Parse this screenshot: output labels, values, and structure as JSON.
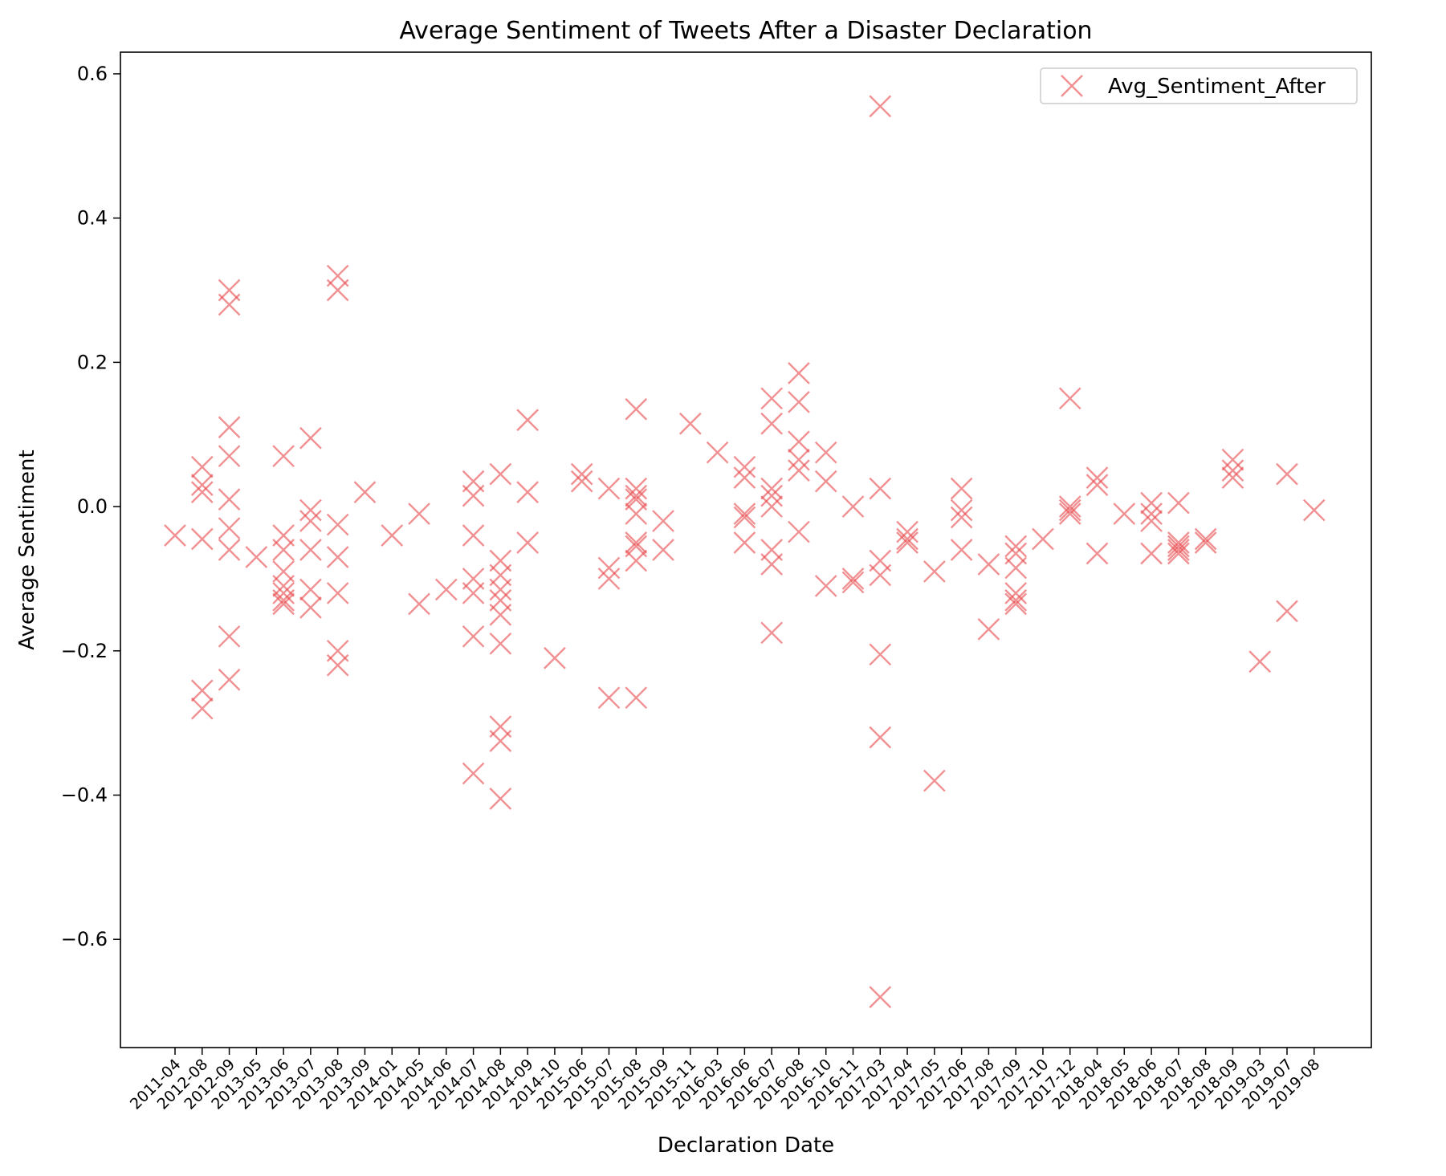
{
  "chart_data": {
    "type": "scatter",
    "title": "Average Sentiment of Tweets After a Disaster Declaration",
    "xlabel": "Declaration Date",
    "ylabel": "Average Sentiment",
    "ylim": [
      -0.75,
      0.63
    ],
    "yticks": [
      "0.6",
      "0.4",
      "0.2",
      "0.0",
      "−0.2",
      "−0.4",
      "−0.6"
    ],
    "ytick_values": [
      0.6,
      0.4,
      0.2,
      0.0,
      -0.2,
      -0.4,
      -0.6
    ],
    "grid": false,
    "legend_position": "top-right",
    "categories": [
      "2011-04",
      "2012-08",
      "2012-09",
      "2013-05",
      "2013-06",
      "2013-07",
      "2013-08",
      "2013-09",
      "2014-01",
      "2014-05",
      "2014-06",
      "2014-07",
      "2014-08",
      "2014-09",
      "2014-10",
      "2015-06",
      "2015-07",
      "2015-08",
      "2015-09",
      "2015-11",
      "2016-03",
      "2016-06",
      "2016-07",
      "2016-08",
      "2016-10",
      "2016-11",
      "2017-03",
      "2017-04",
      "2017-05",
      "2017-06",
      "2017-08",
      "2017-09",
      "2017-10",
      "2017-12",
      "2018-04",
      "2018-05",
      "2018-06",
      "2018-07",
      "2018-08",
      "2018-09",
      "2019-03",
      "2019-07",
      "2019-08"
    ],
    "series": [
      {
        "name": "Avg_Sentiment_After",
        "color": "#e8474a",
        "marker": "x",
        "points": [
          [
            "2011-04",
            -0.04
          ],
          [
            "2012-08",
            0.055
          ],
          [
            "2012-08",
            0.03
          ],
          [
            "2012-08",
            0.02
          ],
          [
            "2012-08",
            -0.045
          ],
          [
            "2012-08",
            -0.255
          ],
          [
            "2012-08",
            -0.28
          ],
          [
            "2012-09",
            0.3
          ],
          [
            "2012-09",
            0.28
          ],
          [
            "2012-09",
            0.11
          ],
          [
            "2012-09",
            0.07
          ],
          [
            "2012-09",
            0.01
          ],
          [
            "2012-09",
            -0.03
          ],
          [
            "2012-09",
            -0.06
          ],
          [
            "2012-09",
            -0.18
          ],
          [
            "2012-09",
            -0.24
          ],
          [
            "2013-05",
            -0.07
          ],
          [
            "2013-06",
            0.07
          ],
          [
            "2013-06",
            -0.04
          ],
          [
            "2013-06",
            -0.06
          ],
          [
            "2013-06",
            -0.09
          ],
          [
            "2013-06",
            -0.11
          ],
          [
            "2013-06",
            -0.12
          ],
          [
            "2013-06",
            -0.13
          ],
          [
            "2013-06",
            -0.135
          ],
          [
            "2013-07",
            0.095
          ],
          [
            "2013-07",
            -0.005
          ],
          [
            "2013-07",
            -0.02
          ],
          [
            "2013-07",
            -0.06
          ],
          [
            "2013-07",
            -0.115
          ],
          [
            "2013-07",
            -0.14
          ],
          [
            "2013-08",
            0.32
          ],
          [
            "2013-08",
            0.3
          ],
          [
            "2013-08",
            -0.025
          ],
          [
            "2013-08",
            -0.07
          ],
          [
            "2013-08",
            -0.12
          ],
          [
            "2013-08",
            -0.2
          ],
          [
            "2013-08",
            -0.22
          ],
          [
            "2013-09",
            0.02
          ],
          [
            "2014-01",
            -0.04
          ],
          [
            "2014-05",
            -0.01
          ],
          [
            "2014-05",
            -0.135
          ],
          [
            "2014-06",
            -0.115
          ],
          [
            "2014-07",
            0.035
          ],
          [
            "2014-07",
            0.015
          ],
          [
            "2014-07",
            -0.04
          ],
          [
            "2014-07",
            -0.1
          ],
          [
            "2014-07",
            -0.12
          ],
          [
            "2014-07",
            -0.18
          ],
          [
            "2014-07",
            -0.37
          ],
          [
            "2014-08",
            0.045
          ],
          [
            "2014-08",
            -0.075
          ],
          [
            "2014-08",
            -0.095
          ],
          [
            "2014-08",
            -0.115
          ],
          [
            "2014-08",
            -0.13
          ],
          [
            "2014-08",
            -0.15
          ],
          [
            "2014-08",
            -0.19
          ],
          [
            "2014-08",
            -0.305
          ],
          [
            "2014-08",
            -0.325
          ],
          [
            "2014-08",
            -0.405
          ],
          [
            "2014-09",
            0.12
          ],
          [
            "2014-09",
            0.02
          ],
          [
            "2014-09",
            -0.05
          ],
          [
            "2014-10",
            -0.21
          ],
          [
            "2015-06",
            0.045
          ],
          [
            "2015-06",
            0.035
          ],
          [
            "2015-07",
            0.025
          ],
          [
            "2015-07",
            -0.085
          ],
          [
            "2015-07",
            -0.1
          ],
          [
            "2015-07",
            -0.265
          ],
          [
            "2015-08",
            0.135
          ],
          [
            "2015-08",
            0.025
          ],
          [
            "2015-08",
            0.015
          ],
          [
            "2015-08",
            0.01
          ],
          [
            "2015-08",
            -0.01
          ],
          [
            "2015-08",
            -0.05
          ],
          [
            "2015-08",
            -0.055
          ],
          [
            "2015-08",
            -0.075
          ],
          [
            "2015-08",
            -0.265
          ],
          [
            "2015-09",
            -0.02
          ],
          [
            "2015-09",
            -0.06
          ],
          [
            "2015-11",
            0.115
          ],
          [
            "2016-03",
            0.075
          ],
          [
            "2016-06",
            0.055
          ],
          [
            "2016-06",
            0.04
          ],
          [
            "2016-06",
            -0.01
          ],
          [
            "2016-06",
            -0.015
          ],
          [
            "2016-06",
            -0.05
          ],
          [
            "2016-07",
            0.15
          ],
          [
            "2016-07",
            0.115
          ],
          [
            "2016-07",
            0.025
          ],
          [
            "2016-07",
            0.015
          ],
          [
            "2016-07",
            0.0
          ],
          [
            "2016-07",
            -0.06
          ],
          [
            "2016-07",
            -0.08
          ],
          [
            "2016-07",
            -0.175
          ],
          [
            "2016-08",
            0.185
          ],
          [
            "2016-08",
            0.145
          ],
          [
            "2016-08",
            0.09
          ],
          [
            "2016-08",
            0.065
          ],
          [
            "2016-08",
            0.05
          ],
          [
            "2016-08",
            -0.035
          ],
          [
            "2016-10",
            0.075
          ],
          [
            "2016-10",
            0.035
          ],
          [
            "2016-10",
            -0.11
          ],
          [
            "2016-11",
            0.0
          ],
          [
            "2016-11",
            -0.1
          ],
          [
            "2016-11",
            -0.105
          ],
          [
            "2017-03",
            0.555
          ],
          [
            "2017-03",
            0.025
          ],
          [
            "2017-03",
            -0.075
          ],
          [
            "2017-03",
            -0.095
          ],
          [
            "2017-03",
            -0.205
          ],
          [
            "2017-03",
            -0.32
          ],
          [
            "2017-03",
            -0.68
          ],
          [
            "2017-04",
            -0.035
          ],
          [
            "2017-04",
            -0.045
          ],
          [
            "2017-04",
            -0.05
          ],
          [
            "2017-05",
            -0.09
          ],
          [
            "2017-05",
            -0.38
          ],
          [
            "2017-06",
            0.025
          ],
          [
            "2017-06",
            -0.005
          ],
          [
            "2017-06",
            -0.015
          ],
          [
            "2017-06",
            -0.06
          ],
          [
            "2017-08",
            -0.08
          ],
          [
            "2017-08",
            -0.17
          ],
          [
            "2017-09",
            -0.055
          ],
          [
            "2017-09",
            -0.065
          ],
          [
            "2017-09",
            -0.085
          ],
          [
            "2017-09",
            -0.12
          ],
          [
            "2017-09",
            -0.13
          ],
          [
            "2017-09",
            -0.135
          ],
          [
            "2017-10",
            -0.045
          ],
          [
            "2017-12",
            0.15
          ],
          [
            "2017-12",
            0.0
          ],
          [
            "2017-12",
            -0.005
          ],
          [
            "2017-12",
            -0.01
          ],
          [
            "2018-04",
            0.04
          ],
          [
            "2018-04",
            0.03
          ],
          [
            "2018-04",
            -0.065
          ],
          [
            "2018-05",
            -0.01
          ],
          [
            "2018-06",
            0.005
          ],
          [
            "2018-06",
            -0.01
          ],
          [
            "2018-06",
            -0.02
          ],
          [
            "2018-06",
            -0.065
          ],
          [
            "2018-07",
            0.005
          ],
          [
            "2018-07",
            -0.05
          ],
          [
            "2018-07",
            -0.055
          ],
          [
            "2018-07",
            -0.06
          ],
          [
            "2018-07",
            -0.065
          ],
          [
            "2018-08",
            -0.045
          ],
          [
            "2018-08",
            -0.05
          ],
          [
            "2018-09",
            0.065
          ],
          [
            "2018-09",
            0.05
          ],
          [
            "2018-09",
            0.04
          ],
          [
            "2019-03",
            -0.215
          ],
          [
            "2019-07",
            0.045
          ],
          [
            "2019-07",
            -0.145
          ],
          [
            "2019-08",
            -0.005
          ]
        ]
      }
    ]
  }
}
